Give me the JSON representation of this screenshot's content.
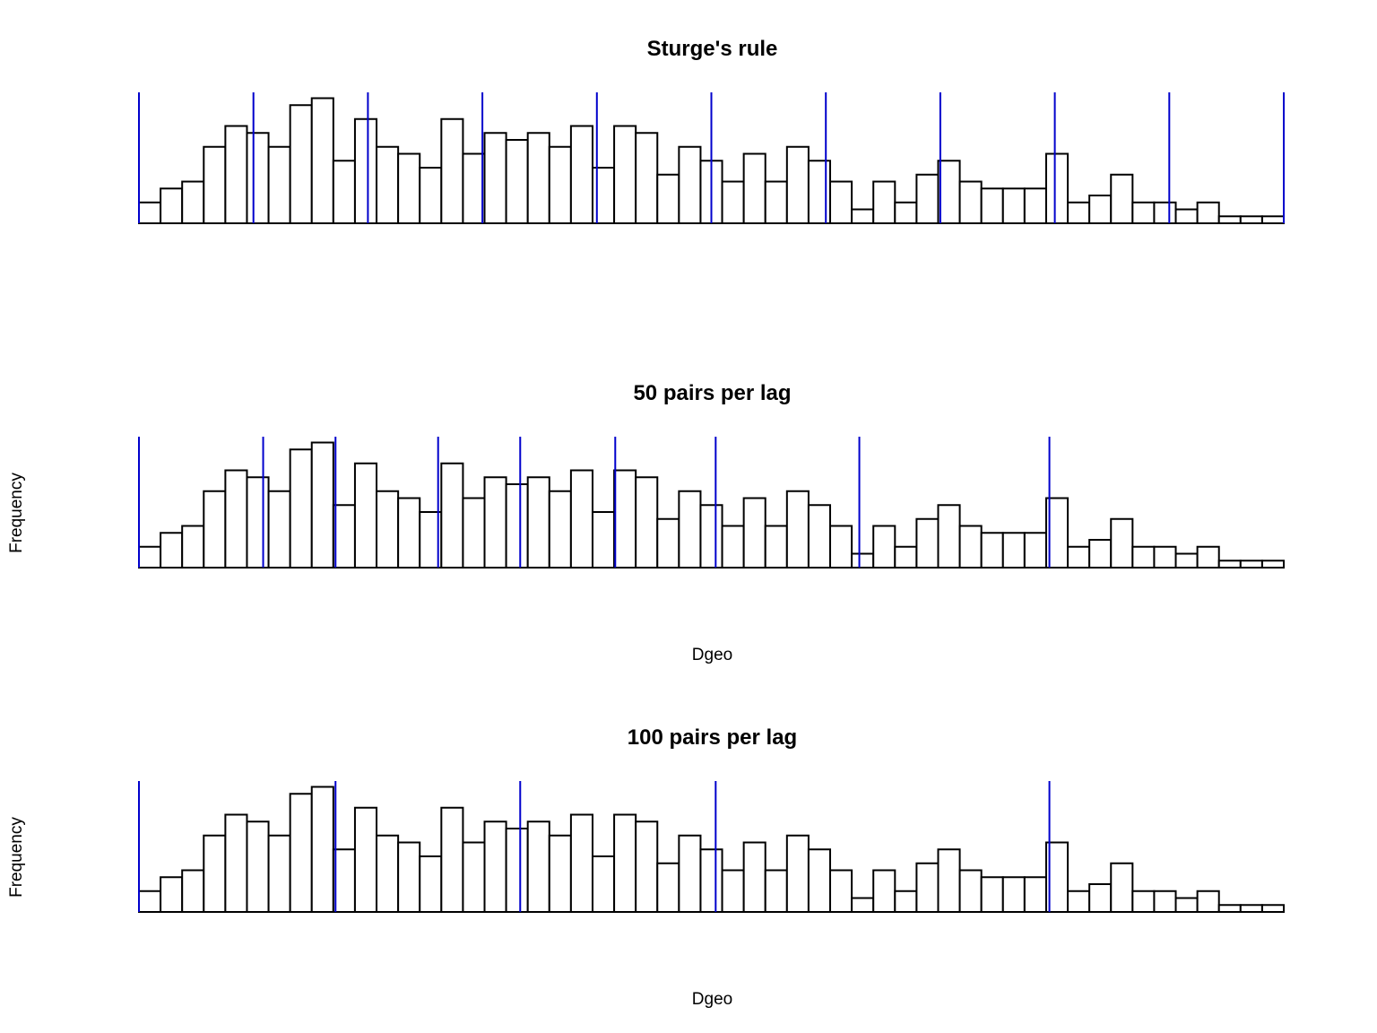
{
  "chart_data": [
    {
      "type": "histogram",
      "title": "Sturge's rule",
      "xlabel": "",
      "ylabel": "",
      "bin_count": 53,
      "frequencies": [
        3,
        5,
        6,
        11,
        14,
        13,
        11,
        17,
        18,
        9,
        15,
        11,
        10,
        8,
        15,
        10,
        13,
        12,
        13,
        11,
        14,
        8,
        14,
        13,
        7,
        11,
        9,
        6,
        10,
        6,
        11,
        9,
        6,
        2,
        6,
        3,
        7,
        9,
        6,
        5,
        5,
        5,
        10,
        3,
        4,
        7,
        3,
        3,
        2,
        3,
        1,
        1,
        1
      ],
      "lag_breaks_bin": [
        0,
        5.3,
        10.6,
        15.9,
        21.2,
        26.5,
        31.8,
        37.1,
        42.4,
        47.7,
        53
      ],
      "line_color": "#0000cc",
      "bar_fill": "#ffffff",
      "bar_stroke": "#000000"
    },
    {
      "type": "histogram",
      "title": "50 pairs per lag",
      "xlabel": "Dgeo",
      "ylabel": "Frequency",
      "bin_count": 53,
      "frequencies": [
        3,
        5,
        6,
        11,
        14,
        13,
        11,
        17,
        18,
        9,
        15,
        11,
        10,
        8,
        15,
        10,
        13,
        12,
        13,
        11,
        14,
        8,
        14,
        13,
        7,
        11,
        9,
        6,
        10,
        6,
        11,
        9,
        6,
        2,
        6,
        3,
        7,
        9,
        6,
        5,
        5,
        5,
        10,
        3,
        4,
        7,
        3,
        3,
        2,
        3,
        1,
        1,
        1
      ],
      "lag_breaks_bin": [
        0,
        5.75,
        9.1,
        13.85,
        17.65,
        22.05,
        26.7,
        33.35,
        42.15
      ],
      "line_color": "#0000cc",
      "bar_fill": "#ffffff",
      "bar_stroke": "#000000"
    },
    {
      "type": "histogram",
      "title": "100 pairs per lag",
      "xlabel": "Dgeo",
      "ylabel": "Frequency",
      "bin_count": 53,
      "frequencies": [
        3,
        5,
        6,
        11,
        14,
        13,
        11,
        17,
        18,
        9,
        15,
        11,
        10,
        8,
        15,
        10,
        13,
        12,
        13,
        11,
        14,
        8,
        14,
        13,
        7,
        11,
        9,
        6,
        10,
        6,
        11,
        9,
        6,
        2,
        6,
        3,
        7,
        9,
        6,
        5,
        5,
        5,
        10,
        3,
        4,
        7,
        3,
        3,
        2,
        3,
        1,
        1,
        1
      ],
      "lag_breaks_bin": [
        0,
        9.1,
        17.65,
        26.7,
        42.15
      ],
      "line_color": "#0000cc",
      "bar_fill": "#ffffff",
      "bar_stroke": "#000000"
    }
  ]
}
